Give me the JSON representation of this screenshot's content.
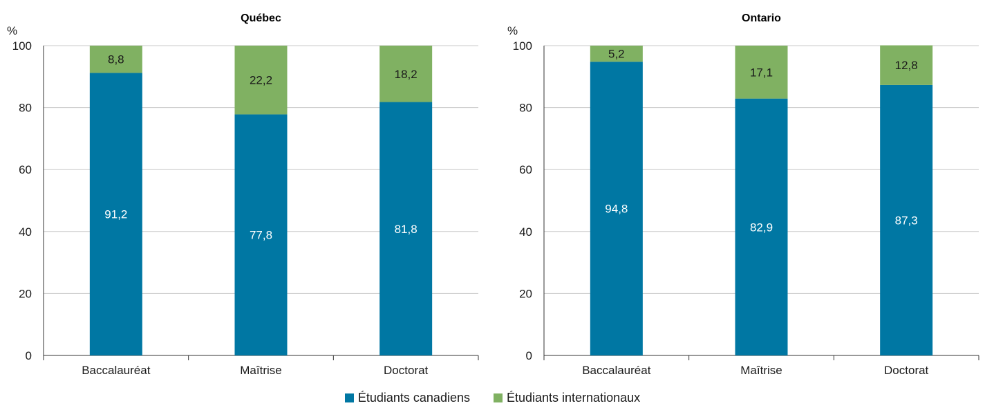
{
  "chart_data": [
    {
      "type": "bar",
      "stacked": true,
      "title": "Québec",
      "ylabel": "%",
      "ylim": [
        0,
        100
      ],
      "yticks": [
        0,
        20,
        40,
        60,
        80,
        100
      ],
      "grid": true,
      "categories": [
        "Baccalauréat",
        "Maîtrise",
        "Doctorat"
      ],
      "series": [
        {
          "name": "Étudiants canadiens",
          "color": "#0077a3",
          "values": [
            91.2,
            77.8,
            81.8
          ],
          "labels": [
            "91,2",
            "77,8",
            "81,8"
          ]
        },
        {
          "name": "Étudiants internationaux",
          "color": "#80b162",
          "values": [
            8.8,
            22.2,
            18.2
          ],
          "labels": [
            "8,8",
            "22,2",
            "18,2"
          ]
        }
      ]
    },
    {
      "type": "bar",
      "stacked": true,
      "title": "Ontario",
      "ylabel": "%",
      "ylim": [
        0,
        100
      ],
      "yticks": [
        0,
        20,
        40,
        60,
        80,
        100
      ],
      "grid": true,
      "categories": [
        "Baccalauréat",
        "Maîtrise",
        "Doctorat"
      ],
      "series": [
        {
          "name": "Étudiants canadiens",
          "color": "#0077a3",
          "values": [
            94.8,
            82.9,
            87.3
          ],
          "labels": [
            "94,8",
            "82,9",
            "87,3"
          ]
        },
        {
          "name": "Étudiants internationaux",
          "color": "#80b162",
          "values": [
            5.2,
            17.1,
            12.8
          ],
          "labels": [
            "5,2",
            "17,1",
            "12,8"
          ]
        }
      ]
    }
  ],
  "legend": {
    "position": "bottom-center",
    "items": [
      {
        "label": "Étudiants canadiens",
        "color": "#0077a3"
      },
      {
        "label": "Étudiants internationaux",
        "color": "#80b162"
      }
    ]
  }
}
